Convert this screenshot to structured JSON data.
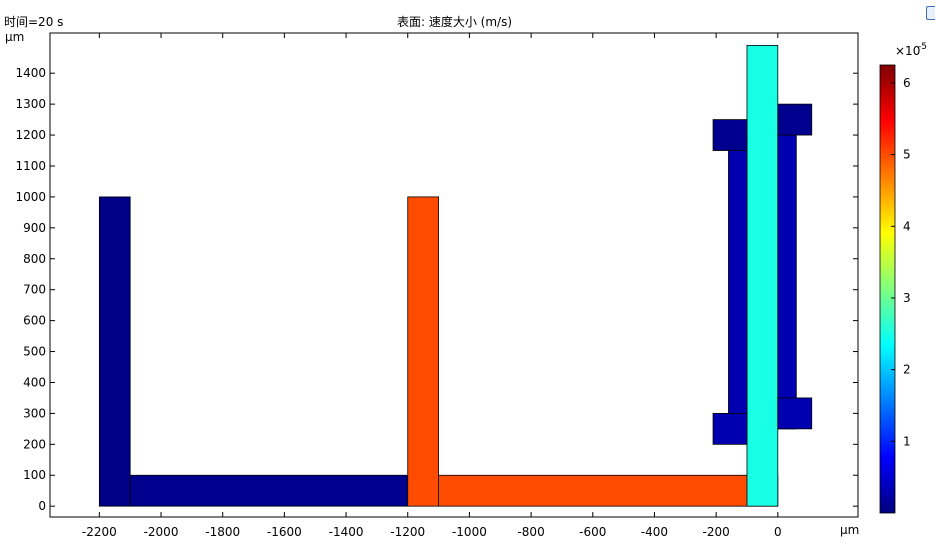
{
  "header": {
    "time_label": "时间=20 s",
    "plot_title": "表面: 速度大小 (m/s)"
  },
  "colors": {
    "axis": "#000000",
    "background": "#ffffff",
    "colormap": [
      "#00007f",
      "#0000ff",
      "#007fff",
      "#00ffff",
      "#7fff7f",
      "#ffff00",
      "#ff7f00",
      "#ff0000",
      "#7f0000"
    ]
  },
  "icons": {
    "corner": "info-window-icon"
  },
  "chart_data": {
    "type": "heatmap",
    "title": "表面: 速度大小 (m/s)",
    "xlabel": "μm",
    "ylabel": "μm",
    "xlim": [
      -2360,
      260
    ],
    "ylim": [
      -35,
      1530
    ],
    "x_ticks": [
      -2200,
      -2000,
      -1800,
      -1600,
      -1400,
      -1200,
      -1000,
      -800,
      -600,
      -400,
      -200,
      0
    ],
    "x_tick_labels": [
      "-2200",
      "-2000",
      "-1800",
      "-1600",
      "-1400",
      "-1200",
      "-1000",
      "-800",
      "-600",
      "-400",
      "-200",
      "0"
    ],
    "y_ticks": [
      0,
      100,
      200,
      300,
      400,
      500,
      600,
      700,
      800,
      900,
      1000,
      1100,
      1200,
      1300,
      1400
    ],
    "y_tick_labels": [
      "0",
      "100",
      "200",
      "300",
      "400",
      "500",
      "600",
      "700",
      "800",
      "900",
      "1000",
      "1100",
      "1200",
      "1300",
      "1400"
    ],
    "colorbar": {
      "exponent_label": "×10",
      "exponent": "-5",
      "min": 0,
      "max": 6.25,
      "ticks": [
        1,
        2,
        3,
        4,
        5,
        6
      ],
      "tick_labels": [
        "1",
        "2",
        "3",
        "4",
        "5",
        "6"
      ]
    },
    "regions": [
      {
        "name": "left-vertical-arm",
        "x": [
          -2200,
          -2100
        ],
        "y": [
          0,
          1000
        ],
        "speed": 0.05
      },
      {
        "name": "bottom-left-channel",
        "x": [
          -2100,
          -1200
        ],
        "y": [
          0,
          100
        ],
        "speed": 0.1
      },
      {
        "name": "middle-vertical-arm",
        "x": [
          -1200,
          -1100
        ],
        "y": [
          0,
          1000
        ],
        "speed": 5.0
      },
      {
        "name": "bottom-right-channel",
        "x": [
          -1100,
          0
        ],
        "y": [
          0,
          100
        ],
        "speed": 5.0
      },
      {
        "name": "outlet-main-channel",
        "x": [
          -100,
          0
        ],
        "y": [
          0,
          1490
        ],
        "speed": 2.5
      },
      {
        "name": "left-porous-column",
        "x": [
          -160,
          -100
        ],
        "y": [
          250,
          1200
        ],
        "speed": 0.3
      },
      {
        "name": "left-top-tab",
        "x": [
          -210,
          -100
        ],
        "y": [
          1150,
          1250
        ],
        "speed": 0.1
      },
      {
        "name": "left-bottom-tab",
        "x": [
          -210,
          -100
        ],
        "y": [
          200,
          300
        ],
        "speed": 0.3
      },
      {
        "name": "right-porous-column",
        "x": [
          0,
          60
        ],
        "y": [
          250,
          1200
        ],
        "speed": 0.3
      },
      {
        "name": "right-top-tab",
        "x": [
          0,
          110
        ],
        "y": [
          1200,
          1300
        ],
        "speed": 0.1
      },
      {
        "name": "right-bottom-tab",
        "x": [
          0,
          110
        ],
        "y": [
          250,
          350
        ],
        "speed": 0.3
      }
    ]
  }
}
